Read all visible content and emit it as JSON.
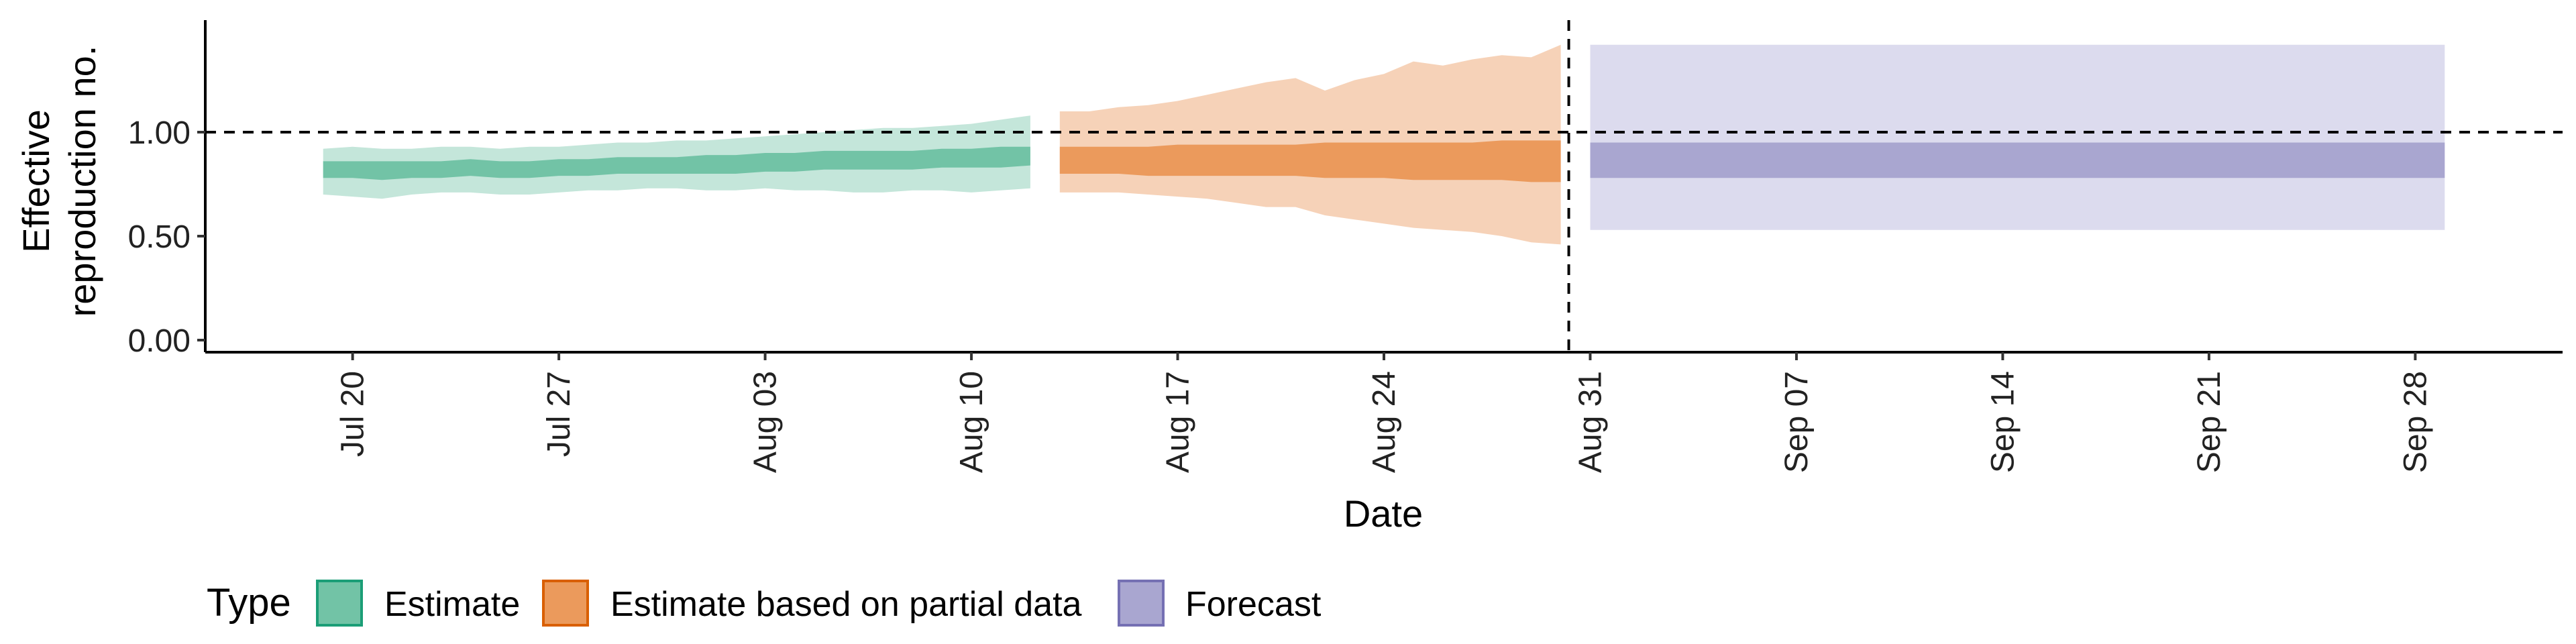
{
  "chart_data": {
    "type": "area",
    "xlabel": "Date",
    "ylabel_lines": [
      "Effective",
      "reproduction no."
    ],
    "ylim": [
      0,
      1.5
    ],
    "y_ticks": [
      {
        "value": 0.0,
        "label": "0.00"
      },
      {
        "value": 0.5,
        "label": "0.50"
      },
      {
        "value": 1.0,
        "label": "1.00"
      }
    ],
    "x_range": [
      "2021-07-15",
      "2021-10-03"
    ],
    "x_ticks": [
      {
        "date": "2021-07-20",
        "label": "Jul 20"
      },
      {
        "date": "2021-07-27",
        "label": "Jul 27"
      },
      {
        "date": "2021-08-03",
        "label": "Aug 03"
      },
      {
        "date": "2021-08-10",
        "label": "Aug 10"
      },
      {
        "date": "2021-08-17",
        "label": "Aug 17"
      },
      {
        "date": "2021-08-24",
        "label": "Aug 24"
      },
      {
        "date": "2021-08-31",
        "label": "Aug 31"
      },
      {
        "date": "2021-09-07",
        "label": "Sep 07"
      },
      {
        "date": "2021-09-14",
        "label": "Sep 14"
      },
      {
        "date": "2021-09-21",
        "label": "Sep 21"
      },
      {
        "date": "2021-09-28",
        "label": "Sep 28"
      }
    ],
    "reference_line_y": 1.0,
    "reference_line_date": "2021-08-30",
    "grid": false,
    "legend": {
      "position": "bottom-left",
      "title": "Type",
      "entries": [
        {
          "label": "Estimate",
          "fill": "#72c3a6",
          "stroke": "#1b9e77"
        },
        {
          "label": "Estimate based on partial data",
          "fill": "#eb9a5c",
          "stroke": "#d95f02"
        },
        {
          "label": "Forecast",
          "fill": "#a9a6d0",
          "stroke": "#7570b3"
        }
      ]
    },
    "series": [
      {
        "name": "Estimate",
        "color": "#1b9e77",
        "inner_color": "#72c3a6",
        "outer_color": "#c4e6da",
        "dates": [
          "2021-07-19",
          "2021-07-20",
          "2021-07-21",
          "2021-07-22",
          "2021-07-23",
          "2021-07-24",
          "2021-07-25",
          "2021-07-26",
          "2021-07-27",
          "2021-07-28",
          "2021-07-29",
          "2021-07-30",
          "2021-07-31",
          "2021-08-01",
          "2021-08-02",
          "2021-08-03",
          "2021-08-04",
          "2021-08-05",
          "2021-08-06",
          "2021-08-07",
          "2021-08-08",
          "2021-08-09",
          "2021-08-10",
          "2021-08-11",
          "2021-08-12"
        ],
        "outer_lower": [
          0.7,
          0.69,
          0.68,
          0.7,
          0.71,
          0.71,
          0.7,
          0.7,
          0.71,
          0.72,
          0.72,
          0.73,
          0.73,
          0.72,
          0.72,
          0.73,
          0.72,
          0.72,
          0.71,
          0.71,
          0.72,
          0.72,
          0.71,
          0.72,
          0.73
        ],
        "outer_upper": [
          0.92,
          0.93,
          0.92,
          0.92,
          0.93,
          0.93,
          0.92,
          0.93,
          0.93,
          0.94,
          0.95,
          0.95,
          0.96,
          0.96,
          0.97,
          0.98,
          0.99,
          1.0,
          1.01,
          1.02,
          1.02,
          1.03,
          1.04,
          1.06,
          1.08
        ],
        "inner_lower": [
          0.78,
          0.78,
          0.77,
          0.78,
          0.78,
          0.79,
          0.78,
          0.78,
          0.79,
          0.79,
          0.8,
          0.8,
          0.8,
          0.8,
          0.8,
          0.81,
          0.81,
          0.82,
          0.82,
          0.82,
          0.82,
          0.83,
          0.83,
          0.83,
          0.84
        ],
        "inner_upper": [
          0.86,
          0.86,
          0.86,
          0.86,
          0.86,
          0.87,
          0.86,
          0.86,
          0.87,
          0.87,
          0.88,
          0.88,
          0.88,
          0.89,
          0.89,
          0.9,
          0.9,
          0.91,
          0.91,
          0.91,
          0.91,
          0.92,
          0.92,
          0.93,
          0.93
        ]
      },
      {
        "name": "Estimate based on partial data",
        "color": "#d95f02",
        "inner_color": "#eb9a5c",
        "outer_color": "#f6d2b8",
        "dates": [
          "2021-08-13",
          "2021-08-14",
          "2021-08-15",
          "2021-08-16",
          "2021-08-17",
          "2021-08-18",
          "2021-08-19",
          "2021-08-20",
          "2021-08-21",
          "2021-08-22",
          "2021-08-23",
          "2021-08-24",
          "2021-08-25",
          "2021-08-26",
          "2021-08-27",
          "2021-08-28",
          "2021-08-29",
          "2021-08-30"
        ],
        "outer_lower": [
          0.71,
          0.71,
          0.71,
          0.7,
          0.69,
          0.68,
          0.66,
          0.64,
          0.64,
          0.6,
          0.58,
          0.56,
          0.54,
          0.53,
          0.52,
          0.5,
          0.47,
          0.46
        ],
        "outer_upper": [
          1.1,
          1.1,
          1.12,
          1.13,
          1.15,
          1.18,
          1.21,
          1.24,
          1.26,
          1.2,
          1.25,
          1.28,
          1.34,
          1.32,
          1.35,
          1.37,
          1.36,
          1.42
        ],
        "inner_lower": [
          0.8,
          0.8,
          0.8,
          0.79,
          0.79,
          0.79,
          0.79,
          0.79,
          0.79,
          0.78,
          0.78,
          0.78,
          0.77,
          0.77,
          0.77,
          0.77,
          0.76,
          0.76
        ],
        "inner_upper": [
          0.93,
          0.93,
          0.93,
          0.93,
          0.94,
          0.94,
          0.94,
          0.94,
          0.94,
          0.95,
          0.95,
          0.95,
          0.95,
          0.95,
          0.95,
          0.96,
          0.96,
          0.96
        ]
      },
      {
        "name": "Forecast",
        "color": "#7570b3",
        "inner_color": "#a9a6d0",
        "outer_color": "#dcdbee",
        "dates": [
          "2021-08-31",
          "2021-09-29"
        ],
        "outer_lower": [
          0.53,
          0.53
        ],
        "outer_upper": [
          1.42,
          1.42
        ],
        "inner_lower": [
          0.78,
          0.78
        ],
        "inner_upper": [
          0.95,
          0.95
        ]
      }
    ]
  }
}
